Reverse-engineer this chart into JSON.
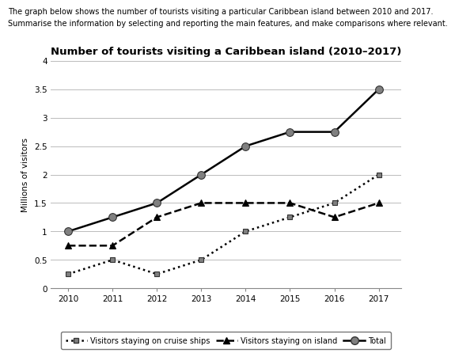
{
  "title": "Number of tourists visiting a Caribbean island (2010–2017)",
  "header_line1": "The graph below shows the number of tourists visiting a particular Caribbean island between 2010 and 2017.",
  "header_line2": "Summarise the information by selecting and reporting the main features, and make comparisons where relevant.",
  "ylabel": "Millions of visitors",
  "years": [
    2010,
    2011,
    2012,
    2013,
    2014,
    2015,
    2016,
    2017
  ],
  "cruise_ships": [
    0.25,
    0.5,
    0.25,
    0.5,
    1.0,
    1.25,
    1.5,
    2.0
  ],
  "on_island": [
    0.75,
    0.75,
    1.25,
    1.5,
    1.5,
    1.5,
    1.25,
    1.5
  ],
  "total": [
    1.0,
    1.25,
    1.5,
    2.0,
    2.5,
    2.75,
    2.75,
    3.5
  ],
  "ylim": [
    0,
    4
  ],
  "yticks": [
    0,
    0.5,
    1.0,
    1.5,
    2.0,
    2.5,
    3.0,
    3.5,
    4.0
  ],
  "line_color": "#000000",
  "background_color": "#ffffff",
  "grid_color": "#bbbbbb",
  "legend_cruise_label": "Visitors staying on cruise ships",
  "legend_island_label": "Visitors staying on island",
  "legend_total_label": "Total",
  "marker_gray": "#808080",
  "header1_fontsize": 7.0,
  "header2_fontsize": 7.0,
  "title_fontsize": 9.5,
  "tick_fontsize": 7.5,
  "ylabel_fontsize": 7.5,
  "legend_fontsize": 7.0
}
